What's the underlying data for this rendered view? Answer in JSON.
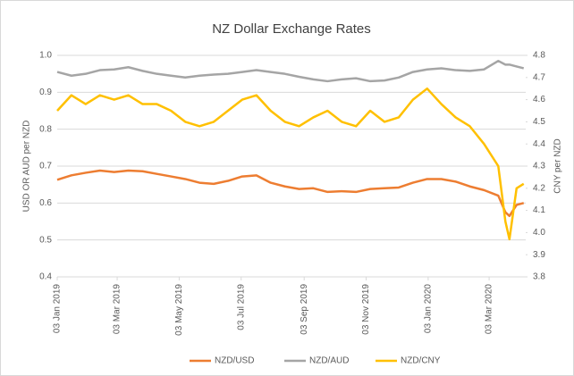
{
  "chart_data": {
    "type": "line",
    "title": "NZ Dollar Exchange Rates",
    "y_label": "USD OR AUD per NZD",
    "y2_label": "CNY per NZD",
    "x": [
      "2019-01-03",
      "2019-01-17",
      "2019-01-31",
      "2019-02-14",
      "2019-02-28",
      "2019-03-14",
      "2019-03-28",
      "2019-04-11",
      "2019-04-25",
      "2019-05-09",
      "2019-05-23",
      "2019-06-06",
      "2019-06-20",
      "2019-07-04",
      "2019-07-18",
      "2019-08-01",
      "2019-08-15",
      "2019-08-29",
      "2019-09-12",
      "2019-09-26",
      "2019-10-10",
      "2019-10-24",
      "2019-11-07",
      "2019-11-21",
      "2019-12-05",
      "2019-12-19",
      "2020-01-02",
      "2020-01-16",
      "2020-01-30",
      "2020-02-13",
      "2020-02-27",
      "2020-03-12",
      "2020-03-19",
      "2020-03-23",
      "2020-03-30",
      "2020-04-06"
    ],
    "series": [
      {
        "name": "NZD/USD",
        "color": "#ed7d31",
        "values": [
          0.663,
          0.675,
          0.682,
          0.688,
          0.684,
          0.688,
          0.686,
          0.679,
          0.672,
          0.665,
          0.655,
          0.652,
          0.66,
          0.672,
          0.675,
          0.655,
          0.645,
          0.638,
          0.64,
          0.63,
          0.632,
          0.63,
          0.638,
          0.64,
          0.642,
          0.655,
          0.665,
          0.665,
          0.658,
          0.645,
          0.635,
          0.62,
          0.575,
          0.565,
          0.595,
          0.6
        ]
      },
      {
        "name": "NZD/AUD",
        "color": "#a5a5a5",
        "values": [
          0.955,
          0.945,
          0.95,
          0.96,
          0.962,
          0.968,
          0.958,
          0.95,
          0.945,
          0.94,
          0.945,
          0.948,
          0.95,
          0.955,
          0.96,
          0.955,
          0.95,
          0.942,
          0.935,
          0.93,
          0.935,
          0.938,
          0.93,
          0.932,
          0.94,
          0.955,
          0.962,
          0.965,
          0.96,
          0.958,
          0.962,
          0.985,
          0.975,
          0.975,
          0.97,
          0.965
        ]
      },
      {
        "name": "NZD/CNY",
        "color": "#ffc000",
        "axis": "y2",
        "values": [
          4.55,
          4.62,
          4.58,
          4.62,
          4.6,
          4.62,
          4.58,
          4.58,
          4.55,
          4.5,
          4.48,
          4.5,
          4.55,
          4.6,
          4.62,
          4.55,
          4.5,
          4.48,
          4.52,
          4.55,
          4.5,
          4.48,
          4.55,
          4.5,
          4.52,
          4.6,
          4.65,
          4.58,
          4.52,
          4.48,
          4.4,
          4.3,
          4.05,
          3.97,
          4.2,
          4.22
        ]
      }
    ],
    "xlim": [
      "2019-01-03",
      "2020-04-08"
    ],
    "xticks": [
      {
        "value": "2019-01-03",
        "label": "03 Jan 2019"
      },
      {
        "value": "2019-03-03",
        "label": "03 Mar 2019"
      },
      {
        "value": "2019-05-03",
        "label": "03 May 2019"
      },
      {
        "value": "2019-07-03",
        "label": "03 Jul 2019"
      },
      {
        "value": "2019-09-03",
        "label": "03 Sep 2019"
      },
      {
        "value": "2019-11-03",
        "label": "03 Nov 2019"
      },
      {
        "value": "2020-01-03",
        "label": "03 Jan 2020"
      },
      {
        "value": "2020-03-03",
        "label": "03 Mar 2020"
      }
    ],
    "ylim": [
      0.4,
      1.0
    ],
    "yticks": [
      0.4,
      0.5,
      0.6,
      0.7,
      0.8,
      0.9,
      {
        "value": 1.0,
        "label": "1.0"
      }
    ],
    "y2lim": [
      3.8,
      4.8
    ],
    "y2ticks": [
      3.8,
      3.9,
      {
        "value": 4.0,
        "label": "4.0"
      },
      4.1,
      4.2,
      4.3,
      4.4,
      4.5,
      4.6,
      4.7,
      4.8
    ],
    "grid": true,
    "legend": "bottom"
  }
}
